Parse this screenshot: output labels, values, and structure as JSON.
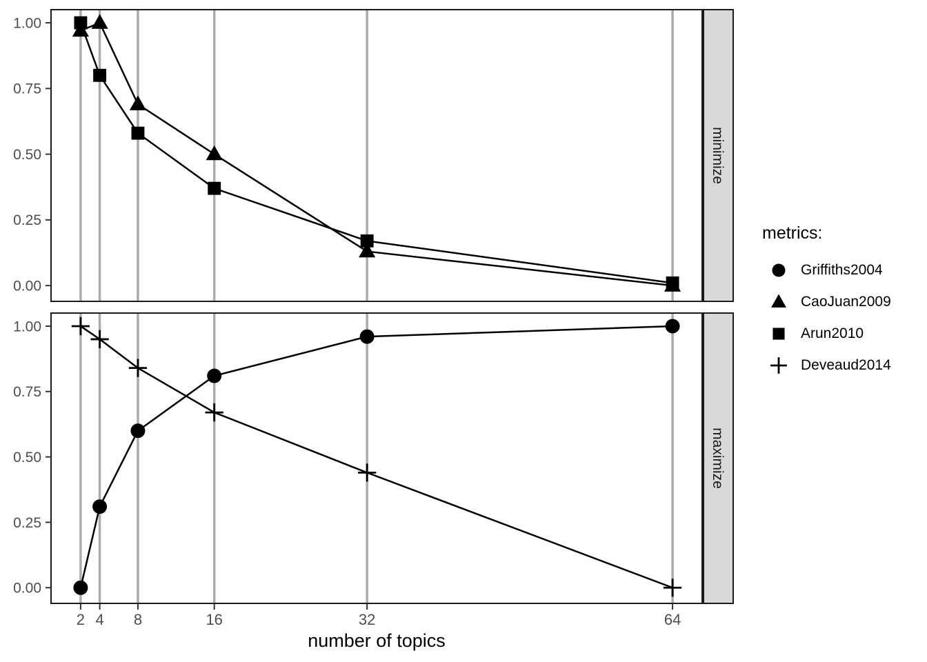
{
  "colors": {
    "foreground": "#000000",
    "grid": "#ABABAB",
    "panel_border": "#1A1A1A",
    "strip_fill": "#D9D9D9",
    "strip_text": "#1A1A1A",
    "axis_text": "#4D4D4D",
    "tick_mark": "#333333",
    "background": "#FFFFFF"
  },
  "chart_data": {
    "type": "line",
    "title": "",
    "xlabel": "number of topics",
    "ylabel": "",
    "x": [
      2,
      4,
      8,
      16,
      32,
      64
    ],
    "x_breaks": [
      2,
      4,
      8,
      16,
      32,
      64
    ],
    "x_domain": [
      -1.1,
      67.1
    ],
    "y_breaks": [
      0,
      0.25,
      0.5,
      0.75,
      1
    ],
    "y_domain": [
      -0.06,
      1.05
    ],
    "grid": "vertical-major-only",
    "legend_position": "right",
    "facets": [
      {
        "label": "minimize",
        "series": [
          {
            "name": "CaoJuan2009",
            "marker": "triangle",
            "values": [
              0.97,
              1.0,
              0.69,
              0.5,
              0.13,
              0.0
            ]
          },
          {
            "name": "Arun2010",
            "marker": "square",
            "values": [
              1.0,
              0.8,
              0.58,
              0.37,
              0.17,
              0.01
            ]
          }
        ]
      },
      {
        "label": "maximize",
        "series": [
          {
            "name": "Griffiths2004",
            "marker": "circle",
            "values": [
              0.0,
              0.31,
              0.6,
              0.81,
              0.96,
              1.0
            ]
          },
          {
            "name": "Deveaud2014",
            "marker": "plus",
            "values": [
              1.0,
              0.95,
              0.84,
              0.67,
              0.44,
              0.0
            ]
          }
        ]
      }
    ]
  },
  "legend": {
    "title": "metrics:",
    "items": [
      {
        "label": "Griffiths2004",
        "marker": "circle"
      },
      {
        "label": "CaoJuan2009",
        "marker": "triangle"
      },
      {
        "label": "Arun2010",
        "marker": "square"
      },
      {
        "label": "Deveaud2014",
        "marker": "plus"
      }
    ]
  }
}
